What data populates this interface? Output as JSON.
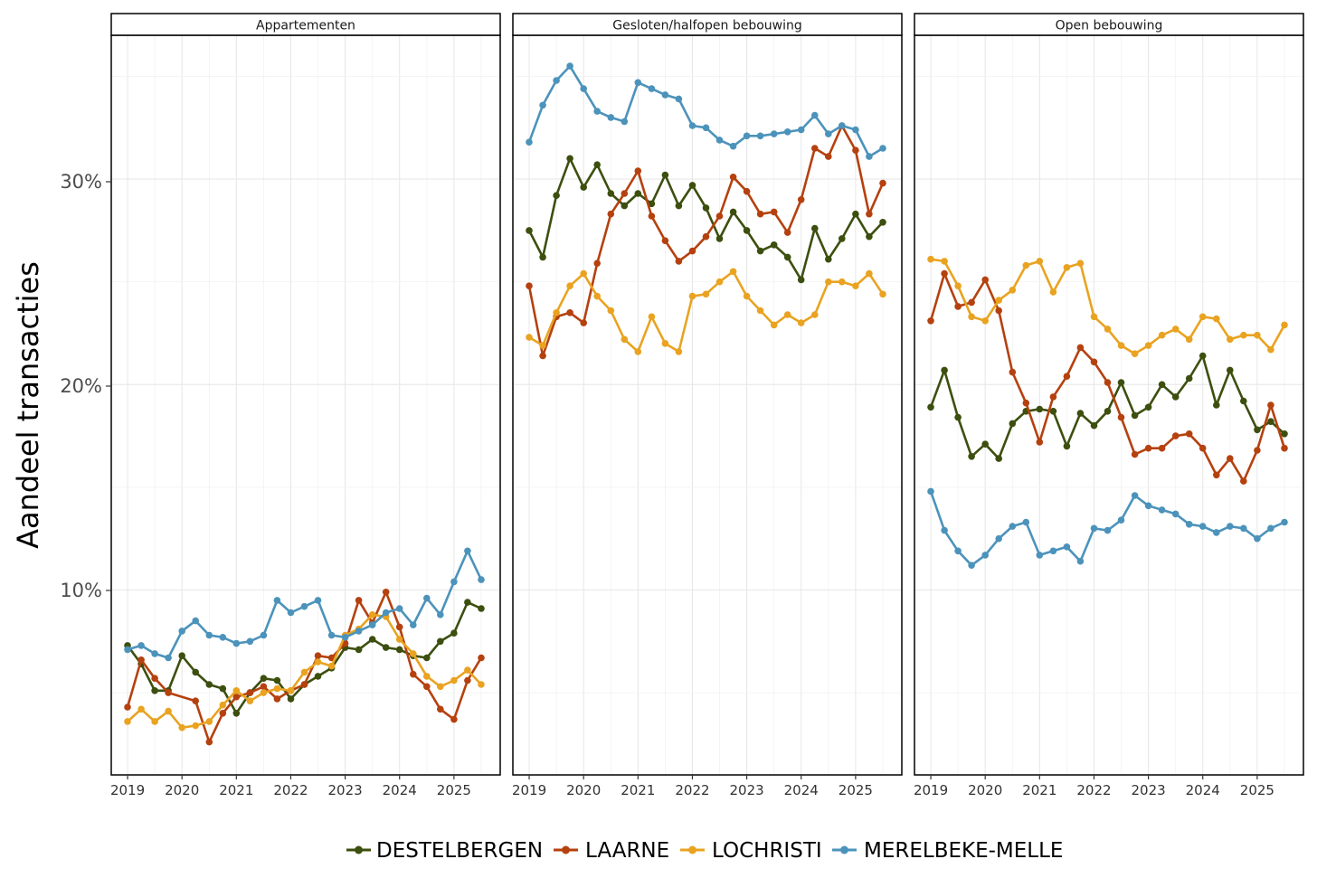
{
  "chart_data": {
    "type": "line",
    "ylabel": "Aandeel transacties",
    "xlabel": "",
    "ylim": [
      1,
      37
    ],
    "yticks": [
      10,
      20,
      30
    ],
    "ytick_labels": [
      "10%",
      "20%",
      "30%"
    ],
    "xlim": [
      2018.7,
      2025.85
    ],
    "xticks": [
      2019,
      2020,
      2021,
      2022,
      2023,
      2024,
      2025
    ],
    "xtick_labels": [
      "2019",
      "2020",
      "2021",
      "2022",
      "2023",
      "2024",
      "2025"
    ],
    "legend_position": "bottom",
    "series_order": [
      "DESTELBERGEN",
      "LAARNE",
      "LOCHRISTI",
      "MERELBEKE-MELLE"
    ],
    "colors": {
      "DESTELBERGEN": "#3d4f0f",
      "LAARNE": "#b5410f",
      "LOCHRISTI": "#e9a321",
      "MERELBEKE-MELLE": "#4c93bb"
    },
    "x": [
      2019,
      2019.25,
      2019.5,
      2019.75,
      2020,
      2020.25,
      2020.5,
      2020.75,
      2021,
      2021.25,
      2021.5,
      2021.75,
      2022,
      2022.25,
      2022.5,
      2022.75,
      2023,
      2023.25,
      2023.5,
      2023.75,
      2024,
      2024.25,
      2024.5,
      2024.75,
      2025,
      2025.25,
      2025.5
    ],
    "panels": [
      {
        "title": "Appartementen",
        "series": [
          {
            "name": "DESTELBERGEN",
            "values": [
              7.3,
              6.4,
              5.1,
              5.1,
              6.8,
              6.0,
              5.4,
              5.2,
              4.0,
              5.0,
              5.7,
              5.6,
              4.7,
              5.4,
              5.8,
              6.2,
              7.2,
              7.1,
              7.6,
              7.2,
              7.1,
              6.8,
              6.7,
              7.5,
              7.9,
              9.4,
              9.1
            ]
          },
          {
            "name": "LAARNE",
            "values": [
              4.3,
              6.6,
              5.7,
              5.0,
              null,
              4.6,
              2.6,
              4.0,
              4.8,
              5.0,
              5.3,
              4.7,
              5.1,
              5.4,
              6.8,
              6.7,
              7.4,
              9.5,
              8.4,
              9.9,
              8.2,
              5.9,
              5.3,
              4.2,
              3.7,
              5.6,
              6.7
            ]
          },
          {
            "name": "LOCHRISTI",
            "values": [
              3.6,
              4.2,
              3.6,
              4.1,
              3.3,
              3.4,
              3.6,
              4.4,
              5.1,
              4.6,
              5.0,
              5.2,
              5.1,
              6.0,
              6.5,
              6.3,
              7.8,
              8.1,
              8.8,
              8.7,
              7.6,
              6.9,
              5.8,
              5.3,
              5.6,
              6.1,
              5.4
            ]
          },
          {
            "name": "MERELBEKE-MELLE",
            "values": [
              7.1,
              7.3,
              6.9,
              6.7,
              8.0,
              8.5,
              7.8,
              7.7,
              7.4,
              7.5,
              7.8,
              9.5,
              8.9,
              9.2,
              9.5,
              7.8,
              7.7,
              8.0,
              8.3,
              8.9,
              9.1,
              8.3,
              9.6,
              8.8,
              10.4,
              11.9,
              10.5
            ]
          }
        ]
      },
      {
        "title": "Gesloten/halfopen bebouwing",
        "series": [
          {
            "name": "DESTELBERGEN",
            "values": [
              27.5,
              26.2,
              29.2,
              31.0,
              29.6,
              30.7,
              29.3,
              28.7,
              29.3,
              28.8,
              30.2,
              28.7,
              29.7,
              28.6,
              27.1,
              28.4,
              27.5,
              26.5,
              26.8,
              26.2,
              25.1,
              27.6,
              26.1,
              27.1,
              28.3,
              27.2,
              27.9
            ]
          },
          {
            "name": "LAARNE",
            "values": [
              24.8,
              21.4,
              23.3,
              23.5,
              23.0,
              25.9,
              28.3,
              29.3,
              30.4,
              28.2,
              27.0,
              26.0,
              26.5,
              27.2,
              28.2,
              30.1,
              29.4,
              28.3,
              28.4,
              27.4,
              29.0,
              31.5,
              31.1,
              32.6,
              31.4,
              28.3,
              29.8
            ]
          },
          {
            "name": "LOCHRISTI",
            "values": [
              22.3,
              21.9,
              23.5,
              24.8,
              25.4,
              24.3,
              23.6,
              22.2,
              21.6,
              23.3,
              22.0,
              21.6,
              24.3,
              24.4,
              25.0,
              25.5,
              24.3,
              23.6,
              22.9,
              23.4,
              23.0,
              23.4,
              25.0,
              25.0,
              24.8,
              25.4,
              24.4
            ]
          },
          {
            "name": "MERELBEKE-MELLE",
            "values": [
              31.8,
              33.6,
              34.8,
              35.5,
              34.4,
              33.3,
              33.0,
              32.8,
              34.7,
              34.4,
              34.1,
              33.9,
              32.6,
              32.5,
              31.9,
              31.6,
              32.1,
              32.1,
              32.2,
              32.3,
              32.4,
              33.1,
              32.2,
              32.6,
              32.4,
              31.1,
              31.5
            ]
          }
        ]
      },
      {
        "title": "Open bebouwing",
        "series": [
          {
            "name": "DESTELBERGEN",
            "values": [
              18.9,
              20.7,
              18.4,
              16.5,
              17.1,
              16.4,
              18.1,
              18.7,
              18.8,
              18.7,
              17.0,
              18.6,
              18.0,
              18.7,
              20.1,
              18.5,
              18.9,
              20.0,
              19.4,
              20.3,
              21.4,
              19.0,
              20.7,
              19.2,
              17.8,
              18.2,
              17.6
            ]
          },
          {
            "name": "LAARNE",
            "values": [
              23.1,
              25.4,
              23.8,
              24.0,
              25.1,
              23.6,
              20.6,
              19.1,
              17.2,
              19.4,
              20.4,
              21.8,
              21.1,
              20.1,
              18.4,
              16.6,
              16.9,
              16.9,
              17.5,
              17.6,
              16.9,
              15.6,
              16.4,
              15.3,
              16.8,
              19.0,
              16.9
            ]
          },
          {
            "name": "LOCHRISTI",
            "values": [
              26.1,
              26.0,
              24.8,
              23.3,
              23.1,
              24.1,
              24.6,
              25.8,
              26.0,
              24.5,
              25.7,
              25.9,
              23.3,
              22.7,
              21.9,
              21.5,
              21.9,
              22.4,
              22.7,
              22.2,
              23.3,
              23.2,
              22.2,
              22.4,
              22.4,
              21.7,
              22.9
            ]
          },
          {
            "name": "MERELBEKE-MELLE",
            "values": [
              14.8,
              12.9,
              11.9,
              11.2,
              11.7,
              12.5,
              13.1,
              13.3,
              11.7,
              11.9,
              12.1,
              11.4,
              13.0,
              12.9,
              13.4,
              14.6,
              14.1,
              13.9,
              13.7,
              13.2,
              13.1,
              12.8,
              13.1,
              13.0,
              12.5,
              13.0,
              13.3
            ]
          }
        ]
      }
    ]
  }
}
